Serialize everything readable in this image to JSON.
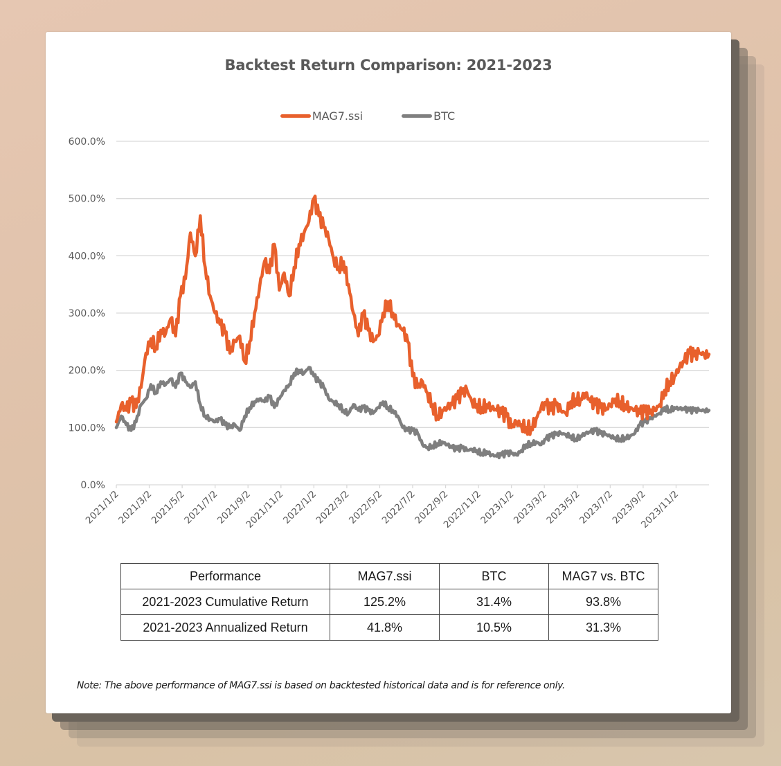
{
  "chart_data": {
    "type": "line",
    "title": "Backtest Return Comparison: 2021-2023",
    "xlabel": "",
    "ylabel": "",
    "ylim": [
      0,
      600
    ],
    "y_ticks": [
      "0.0%",
      "100.0%",
      "200.0%",
      "300.0%",
      "400.0%",
      "500.0%",
      "600.0%"
    ],
    "y_tick_values": [
      0,
      100,
      200,
      300,
      400,
      500,
      600
    ],
    "x_ticks": [
      "2021/1/2",
      "2021/3/2",
      "2021/5/2",
      "2021/7/2",
      "2021/9/2",
      "2021/11/2",
      "2022/1/2",
      "2022/3/2",
      "2022/5/2",
      "2022/7/2",
      "2022/9/2",
      "2022/11/2",
      "2023/1/2",
      "2023/3/2",
      "2023/5/2",
      "2023/7/2",
      "2023/9/2",
      "2023/11/2"
    ],
    "x_range_months": [
      0,
      36
    ],
    "grid": true,
    "legend_position": "top-center",
    "series": [
      {
        "name": "MAG7.ssi",
        "color": "#e8602c",
        "x_months": [
          0,
          0.3,
          0.6,
          0.9,
          1.2,
          1.5,
          1.8,
          2.1,
          2.4,
          2.7,
          3.0,
          3.3,
          3.6,
          3.9,
          4.2,
          4.5,
          4.8,
          5.1,
          5.4,
          5.7,
          6.0,
          6.3,
          6.6,
          6.9,
          7.2,
          7.5,
          7.8,
          8.1,
          8.4,
          8.7,
          9.0,
          9.3,
          9.6,
          9.9,
          10.2,
          10.5,
          10.8,
          11.1,
          11.4,
          11.7,
          12.0,
          12.3,
          12.6,
          12.9,
          13.2,
          13.5,
          13.8,
          14.1,
          14.4,
          14.7,
          15.0,
          15.3,
          15.6,
          15.9,
          16.2,
          16.5,
          16.8,
          17.1,
          17.4,
          17.7,
          18.0,
          18.3,
          18.6,
          18.9,
          19.2,
          19.5,
          19.8,
          20.1,
          20.4,
          20.7,
          21.0,
          21.3,
          21.6,
          21.9,
          22.2,
          22.5,
          22.8,
          23.1,
          23.4,
          23.7,
          24.0,
          24.3,
          24.6,
          24.9,
          25.2,
          25.5,
          25.8,
          26.1,
          26.4,
          26.7,
          27.0,
          27.3,
          27.6,
          27.9,
          28.2,
          28.5,
          28.8,
          29.1,
          29.4,
          29.7,
          30.0,
          30.3,
          30.6,
          30.9,
          31.2,
          31.5,
          31.8,
          32.1,
          32.4,
          32.7,
          33.0,
          33.3,
          33.6,
          33.9,
          34.2,
          34.5,
          34.8,
          35.1,
          35.4,
          35.7,
          36.0
        ],
        "values": [
          110,
          140,
          130,
          145,
          135,
          170,
          230,
          255,
          240,
          270,
          265,
          290,
          260,
          330,
          360,
          440,
          400,
          470,
          380,
          330,
          300,
          280,
          265,
          230,
          250,
          260,
          215,
          250,
          300,
          345,
          390,
          370,
          420,
          340,
          370,
          330,
          380,
          420,
          440,
          460,
          500,
          470,
          450,
          430,
          395,
          380,
          390,
          350,
          300,
          260,
          300,
          270,
          250,
          260,
          300,
          320,
          300,
          280,
          270,
          250,
          190,
          170,
          180,
          160,
          140,
          120,
          130,
          135,
          140,
          150,
          160,
          165,
          145,
          140,
          135,
          140,
          135,
          130,
          125,
          120,
          100,
          110,
          105,
          100,
          100,
          115,
          135,
          140,
          130,
          140,
          130,
          125,
          145,
          150,
          150,
          160,
          145,
          140,
          135,
          130,
          140,
          150,
          145,
          140,
          135,
          130,
          125,
          128,
          125,
          130,
          140,
          165,
          180,
          190,
          205,
          215,
          230,
          225,
          230,
          228,
          228
        ],
        "end_value": 228
      },
      {
        "name": "BTC",
        "color": "#7f7f7f",
        "x_months": [
          0,
          0.3,
          0.6,
          0.9,
          1.2,
          1.5,
          1.8,
          2.1,
          2.4,
          2.7,
          3.0,
          3.3,
          3.6,
          3.9,
          4.2,
          4.5,
          4.8,
          5.1,
          5.4,
          5.7,
          6.0,
          6.3,
          6.6,
          6.9,
          7.2,
          7.5,
          7.8,
          8.1,
          8.4,
          8.7,
          9.0,
          9.3,
          9.6,
          9.9,
          10.2,
          10.5,
          10.8,
          11.1,
          11.4,
          11.7,
          12.0,
          12.3,
          12.6,
          12.9,
          13.2,
          13.5,
          13.8,
          14.1,
          14.4,
          14.7,
          15.0,
          15.3,
          15.6,
          15.9,
          16.2,
          16.5,
          16.8,
          17.1,
          17.4,
          17.7,
          18.0,
          18.3,
          18.6,
          18.9,
          19.2,
          19.5,
          19.8,
          20.1,
          20.4,
          20.7,
          21.0,
          21.3,
          21.6,
          21.9,
          22.2,
          22.5,
          22.8,
          23.1,
          23.4,
          23.7,
          24.0,
          24.3,
          24.6,
          24.9,
          25.2,
          25.5,
          25.8,
          26.1,
          26.4,
          26.7,
          27.0,
          27.3,
          27.6,
          27.9,
          28.2,
          28.5,
          28.8,
          29.1,
          29.4,
          29.7,
          30.0,
          30.3,
          30.6,
          30.9,
          31.2,
          31.5,
          31.8,
          32.1,
          32.4,
          32.7,
          33.0,
          33.3,
          33.6,
          33.9,
          34.2,
          34.5,
          34.8,
          35.1,
          35.4,
          35.7,
          36.0
        ],
        "values": [
          100,
          120,
          105,
          95,
          110,
          140,
          150,
          175,
          160,
          180,
          175,
          185,
          170,
          195,
          180,
          170,
          180,
          140,
          120,
          115,
          110,
          115,
          105,
          100,
          105,
          95,
          120,
          135,
          145,
          150,
          145,
          155,
          135,
          150,
          165,
          175,
          195,
          200,
          195,
          205,
          190,
          180,
          170,
          150,
          145,
          140,
          130,
          125,
          140,
          130,
          135,
          130,
          125,
          135,
          145,
          135,
          130,
          120,
          100,
          95,
          95,
          90,
          70,
          65,
          68,
          72,
          75,
          70,
          65,
          62,
          65,
          60,
          62,
          60,
          55,
          58,
          52,
          50,
          52,
          55,
          55,
          52,
          60,
          70,
          72,
          75,
          70,
          80,
          85,
          88,
          90,
          88,
          85,
          80,
          85,
          90,
          92,
          95,
          90,
          88,
          85,
          82,
          80,
          82,
          85,
          90,
          105,
          110,
          115,
          120,
          125,
          135,
          130,
          135,
          133,
          132,
          130,
          130,
          130,
          130,
          130
        ],
        "end_value": 130
      }
    ]
  },
  "legend": {
    "items": [
      {
        "label": "MAG7.ssi",
        "color": "#e8602c"
      },
      {
        "label": "BTC",
        "color": "#7f7f7f"
      }
    ]
  },
  "table": {
    "headers": [
      "Performance",
      "MAG7.ssi",
      "BTC",
      "MAG7 vs. BTC"
    ],
    "rows": [
      [
        "2021-2023 Cumulative Return",
        "125.2%",
        "31.4%",
        "93.8%"
      ],
      [
        "2021-2023 Annualized Return",
        "41.8%",
        "10.5%",
        "31.3%"
      ]
    ]
  },
  "note": "Note: The above performance of MAG7.ssi is based on backtested historical data and is for reference only."
}
